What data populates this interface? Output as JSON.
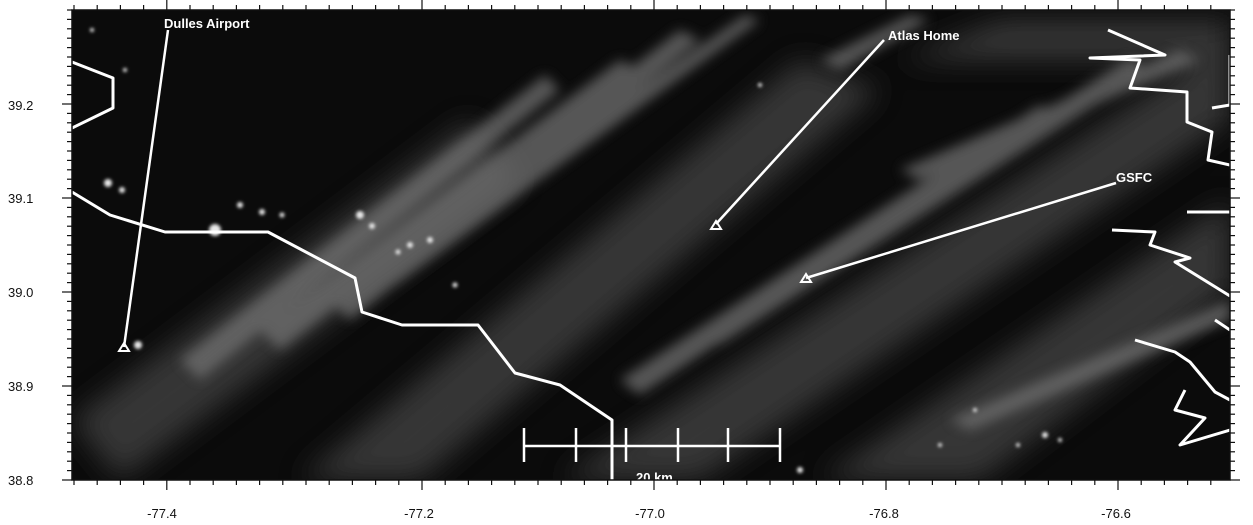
{
  "map": {
    "x_ticks": [
      "-77.4",
      "-77.2",
      "-77.0",
      "-76.8",
      "-76.6"
    ],
    "y_ticks": [
      "39.2",
      "39.1",
      "39.0",
      "38.9",
      "38.8"
    ],
    "places": {
      "dulles": "Dulles Airport",
      "atlas": "Atlas Home",
      "gsfc": "GSFC"
    },
    "scale_bar_label": "20 km",
    "colors": {
      "background": "#0b0b0b",
      "overlay": "#ffffff",
      "frame": "#111111"
    }
  }
}
